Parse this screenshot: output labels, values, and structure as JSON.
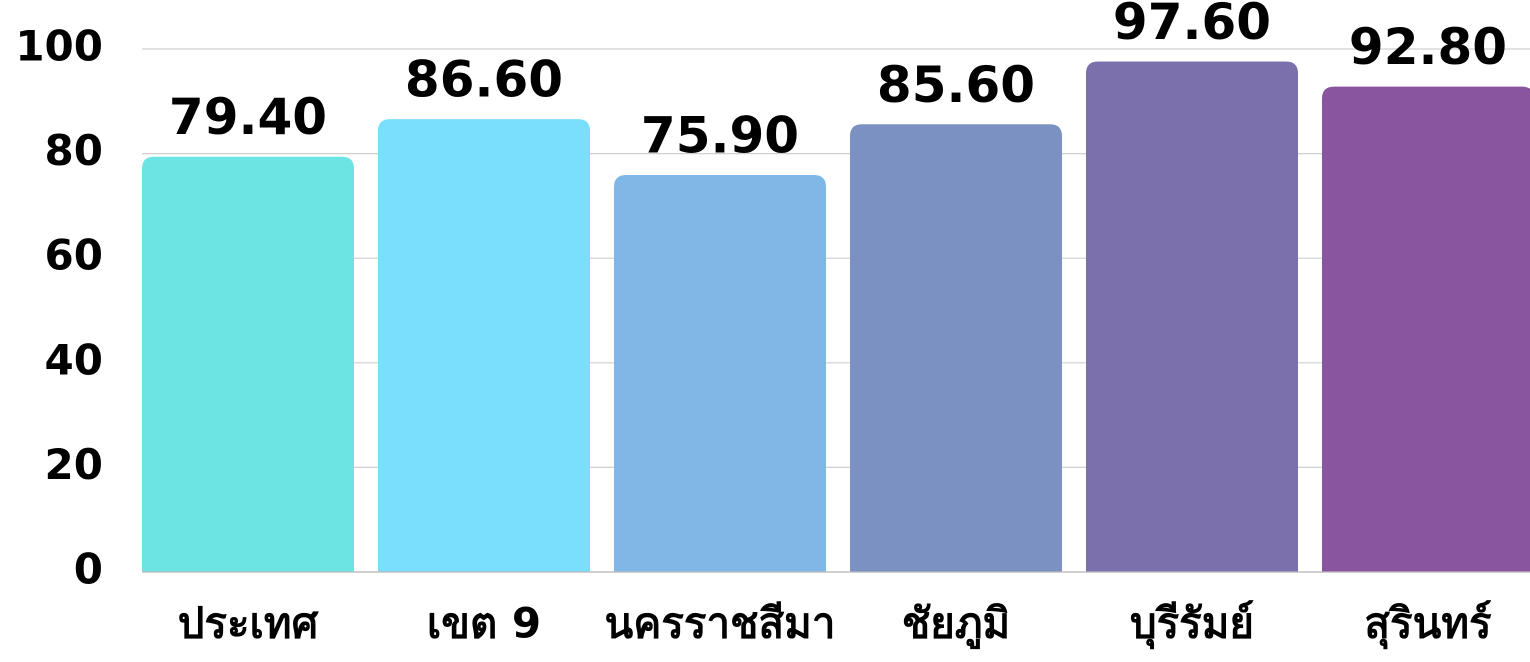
{
  "chart_data": {
    "type": "bar",
    "categories": [
      "ประเทศ",
      "เขต 9",
      "นครราชสีมา",
      "ชัยภูมิ",
      "บุรีรัมย์",
      "สุรินทร์"
    ],
    "values": [
      79.4,
      86.6,
      75.9,
      85.6,
      97.6,
      92.8
    ],
    "value_labels": [
      "79.40",
      "86.60",
      "75.90",
      "85.60",
      "97.60",
      "92.80"
    ],
    "colors": [
      "#6ce4e4",
      "#79dffc",
      "#7fb8e6",
      "#7b91c2",
      "#7b70ac",
      "#8a559f"
    ],
    "ylim": [
      0,
      100
    ],
    "yticks": [
      0,
      20,
      40,
      60,
      80,
      100
    ],
    "grid": true
  }
}
